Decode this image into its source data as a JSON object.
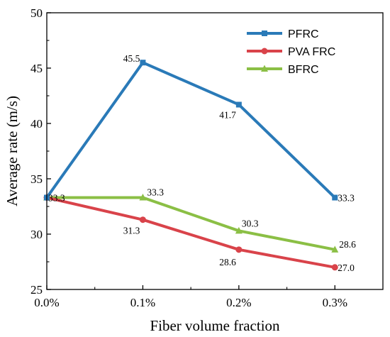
{
  "chart_data": {
    "type": "line",
    "title": "",
    "xlabel": "Fiber volume fraction",
    "ylabel": "Average rate (m/s)",
    "x": [
      0.0,
      0.1,
      0.2,
      0.3
    ],
    "x_tick_labels": [
      "0.0%",
      "0.1%",
      "0.2%",
      "0.3%"
    ],
    "xlim": [
      0.0,
      0.35
    ],
    "ylim": [
      25,
      50
    ],
    "y_ticks": [
      25,
      30,
      35,
      40,
      45,
      50
    ],
    "grid": false,
    "legend_position": "top-right",
    "series": [
      {
        "name": "PFRC",
        "color": "#2a7ab8",
        "marker": "square",
        "values": [
          33.3,
          45.5,
          41.7,
          33.3
        ],
        "labels": [
          "33.3",
          "45.5",
          "41.7",
          "33.3"
        ]
      },
      {
        "name": "PVA FRC",
        "color": "#d9434a",
        "marker": "circle",
        "values": [
          33.3,
          31.3,
          28.6,
          27.0
        ],
        "labels": [
          "",
          "31.3",
          "28.6",
          "27.0"
        ]
      },
      {
        "name": "BFRC",
        "color": "#8bbf45",
        "marker": "triangle",
        "values": [
          33.3,
          33.3,
          30.3,
          28.6
        ],
        "labels": [
          "",
          "33.3",
          "30.3",
          "28.6"
        ]
      }
    ]
  }
}
